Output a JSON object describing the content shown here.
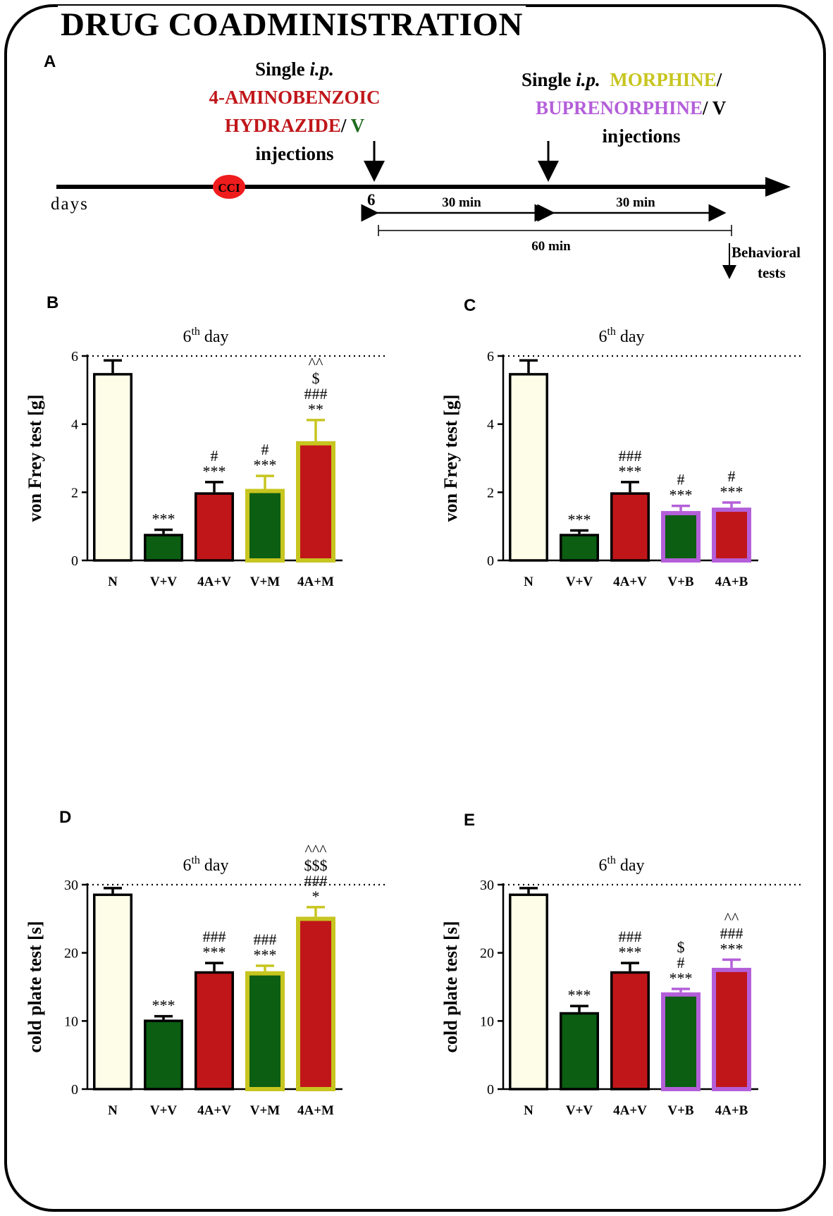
{
  "figure": {
    "title": "DRUG COADMINISTRATION",
    "panel_letters": [
      "A",
      "B",
      "C",
      "D",
      "E"
    ]
  },
  "timeline": {
    "inj1_line1_pre": "Single ",
    "inj1_line1_ital": "i.p.",
    "inj1_line2": "4-AMINOBENZOIC",
    "inj1_line3_a": "HYDRAZIDE",
    "inj1_line3_b": "/ ",
    "inj1_line3_c": "V",
    "inj1_line4": "injections",
    "inj2_line1_pre": "Single ",
    "inj2_line1_ital": "i.p.",
    "inj2_line1_c": "MORPHINE",
    "inj2_line1_d": "/",
    "inj2_line2_a": "BUPRENORPHINE",
    "inj2_line2_b": "/ V",
    "inj2_line3": "injections",
    "cci": "CCI",
    "days": "days",
    "day_num": "6",
    "interval_1": "30 min",
    "interval_2": "30 min",
    "interval_total": "60 min",
    "behav_1": "Behavioral",
    "behav_2": "tests"
  },
  "colors": {
    "cream": "#fdfde8",
    "green": "#0b5e12",
    "red": "#c0161a",
    "olive": "#c7c51f",
    "purple": "#b45fd9",
    "black": "#000000"
  },
  "chart_data": [
    {
      "panel": "B",
      "type": "bar",
      "title_pre": "6",
      "title_sup": "th",
      "title_post": " day",
      "ylabel": "von Frey test [g]",
      "ylim": [
        0,
        6
      ],
      "yticks": [
        "0",
        "2",
        "4",
        "6"
      ],
      "ytick_values": [
        0,
        2,
        4,
        6
      ],
      "dotted_line": 6,
      "categories": [
        "N",
        "V+V",
        "4A+V",
        "V+M",
        "4A+M"
      ],
      "values": [
        5.5,
        0.78,
        2.0,
        2.1,
        3.5
      ],
      "errors": [
        0.37,
        0.12,
        0.3,
        0.38,
        0.62
      ],
      "fills": [
        "#fdfde8",
        "#0b5e12",
        "#c0161a",
        "#0b5e12",
        "#c0161a"
      ],
      "borders": [
        "#000000",
        "#000000",
        "#000000",
        "#c7c51f",
        "#c7c51f"
      ],
      "annotations": [
        [],
        [
          "***"
        ],
        [
          "***",
          "#"
        ],
        [
          "***",
          "#"
        ],
        [
          "**",
          "###",
          "$",
          "^^"
        ]
      ]
    },
    {
      "panel": "C",
      "type": "bar",
      "title_pre": "6",
      "title_sup": "th",
      "title_post": " day",
      "ylabel": "von Frey test [g]",
      "ylim": [
        0,
        6
      ],
      "yticks": [
        "0",
        "2",
        "4",
        "6"
      ],
      "ytick_values": [
        0,
        2,
        4,
        6
      ],
      "dotted_line": 6,
      "categories": [
        "N",
        "V+V",
        "4A+V",
        "V+B",
        "4A+B"
      ],
      "values": [
        5.5,
        0.78,
        2.0,
        1.45,
        1.55
      ],
      "errors": [
        0.37,
        0.1,
        0.3,
        0.15,
        0.15
      ],
      "fills": [
        "#fdfde8",
        "#0b5e12",
        "#c0161a",
        "#0b5e12",
        "#c0161a"
      ],
      "borders": [
        "#000000",
        "#000000",
        "#000000",
        "#b45fd9",
        "#b45fd9"
      ],
      "annotations": [
        [],
        [
          "***"
        ],
        [
          "***",
          "###"
        ],
        [
          "***",
          "#"
        ],
        [
          "***",
          "#"
        ]
      ]
    },
    {
      "panel": "D",
      "type": "bar",
      "title_pre": "6",
      "title_sup": "th",
      "title_post": " day",
      "ylabel": "cold plate test [s]",
      "ylim": [
        0,
        30
      ],
      "yticks": [
        "0",
        "10",
        "20",
        "30"
      ],
      "ytick_values": [
        0,
        10,
        20,
        30
      ],
      "dotted_line": 30,
      "categories": [
        "N",
        "V+V",
        "4A+V",
        "V+M",
        "4A+M"
      ],
      "values": [
        28.7,
        10.2,
        17.3,
        17.3,
        25.3
      ],
      "errors": [
        0.8,
        0.5,
        1.2,
        0.8,
        1.4
      ],
      "fills": [
        "#fdfde8",
        "#0b5e12",
        "#c0161a",
        "#0b5e12",
        "#c0161a"
      ],
      "borders": [
        "#000000",
        "#000000",
        "#000000",
        "#c7c51f",
        "#c7c51f"
      ],
      "annotations": [
        [],
        [
          "***"
        ],
        [
          "***",
          "###"
        ],
        [
          "***",
          "###"
        ],
        [
          "*",
          "###",
          "$$$",
          "^^^"
        ]
      ]
    },
    {
      "panel": "E",
      "type": "bar",
      "title_pre": "6",
      "title_sup": "th",
      "title_post": " day",
      "ylabel": "cold plate test [s]",
      "ylim": [
        0,
        30
      ],
      "yticks": [
        "0",
        "10",
        "20",
        "30"
      ],
      "ytick_values": [
        0,
        10,
        20,
        30
      ],
      "dotted_line": 30,
      "categories": [
        "N",
        "V+V",
        "4A+V",
        "V+B",
        "4A+B"
      ],
      "values": [
        28.7,
        11.3,
        17.3,
        14.2,
        17.8
      ],
      "errors": [
        0.8,
        0.9,
        1.2,
        0.5,
        1.2
      ],
      "fills": [
        "#fdfde8",
        "#0b5e12",
        "#c0161a",
        "#0b5e12",
        "#c0161a"
      ],
      "borders": [
        "#000000",
        "#000000",
        "#000000",
        "#b45fd9",
        "#b45fd9"
      ],
      "annotations": [
        [],
        [
          "***"
        ],
        [
          "***",
          "###"
        ],
        [
          "***",
          "#",
          "$"
        ],
        [
          "***",
          "###",
          "^^"
        ]
      ]
    }
  ]
}
